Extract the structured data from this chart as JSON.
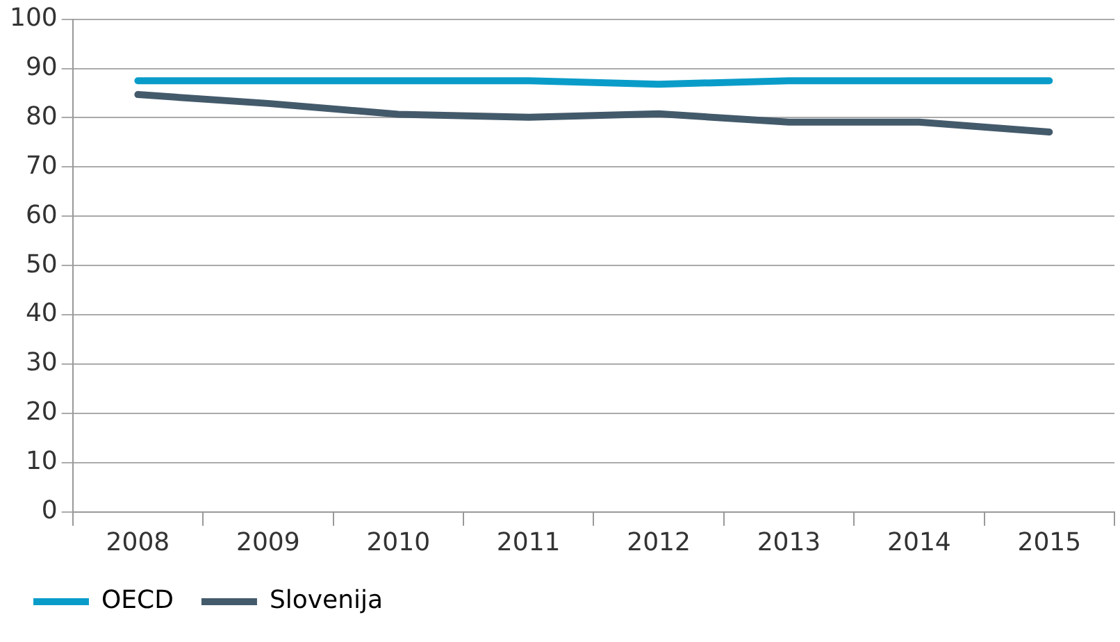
{
  "chart_data": {
    "type": "line",
    "categories": [
      "2008",
      "2009",
      "2010",
      "2011",
      "2012",
      "2013",
      "2014",
      "2015"
    ],
    "series": [
      {
        "name": "OECD",
        "color": "#0a9cc9",
        "values": [
          87.5,
          87.5,
          87.5,
          87.5,
          86.8,
          87.5,
          87.5,
          87.5
        ]
      },
      {
        "name": "Slovenija",
        "color": "#435a6b",
        "values": [
          84.7,
          82.9,
          80.7,
          80.1,
          80.8,
          79.1,
          79.1,
          77.1
        ]
      }
    ],
    "ylim": [
      0,
      100
    ],
    "yticks": [
      0,
      10,
      20,
      30,
      40,
      50,
      60,
      70,
      80,
      90,
      100
    ],
    "grid": "y",
    "legend": "bottom left",
    "marker": "none",
    "line_style": "solid"
  }
}
